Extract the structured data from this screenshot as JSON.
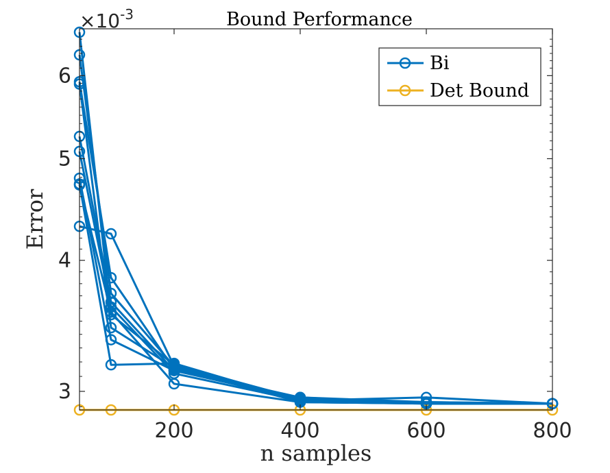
{
  "colors": {
    "series1": "#0072BD",
    "series2": "#EDB120",
    "axis": "#262626",
    "background": "#ffffff"
  },
  "chart_data": {
    "type": "line",
    "title": "Bound Performance",
    "xlabel": "n samples",
    "ylabel": "Error",
    "y_exponent_label": "×10",
    "y_exponent_power": "-3",
    "xlim": [
      50,
      800
    ],
    "ylim": [
      0.00288,
      0.00665
    ],
    "y_scale": "log",
    "x_ticks": [
      200,
      400,
      600,
      800
    ],
    "y_ticks": [
      0.003,
      0.004,
      0.005,
      0.006
    ],
    "y_tick_labels": [
      "3",
      "4",
      "5",
      "6"
    ],
    "grid": false,
    "legend_position": "top-right",
    "legend": [
      "Bi",
      "Det Bound"
    ],
    "x": [
      50,
      100,
      200,
      400,
      600,
      800
    ],
    "bi_lines": [
      [
        0.0066,
        0.00355,
        0.00318,
        0.00295,
        0.00293,
        0.00292
      ],
      [
        0.00628,
        0.00372,
        0.00317,
        0.00294,
        0.00292,
        0.00292
      ],
      [
        0.00592,
        0.00385,
        0.00315,
        0.00296,
        0.00293,
        0.00292
      ],
      [
        0.00589,
        0.00345,
        0.00316,
        0.00293,
        0.00292,
        0.00292
      ],
      [
        0.00525,
        0.00365,
        0.00314,
        0.00295,
        0.00292,
        0.00292
      ],
      [
        0.00508,
        0.00361,
        0.00312,
        0.00294,
        0.00292,
        0.00292
      ],
      [
        0.00479,
        0.00336,
        0.00314,
        0.00296,
        0.00292,
        0.00292
      ],
      [
        0.00473,
        0.00318,
        0.00319,
        0.00294,
        0.00296,
        0.00292
      ],
      [
        0.00472,
        0.00357,
        0.00305,
        0.00293,
        0.00292,
        0.00292
      ],
      [
        0.00431,
        0.00424,
        0.00317,
        0.00295,
        0.00292,
        0.00292
      ]
    ],
    "det_bound": [
      0.00288,
      0.00288,
      0.00288,
      0.00288,
      0.00288,
      0.00288
    ]
  }
}
